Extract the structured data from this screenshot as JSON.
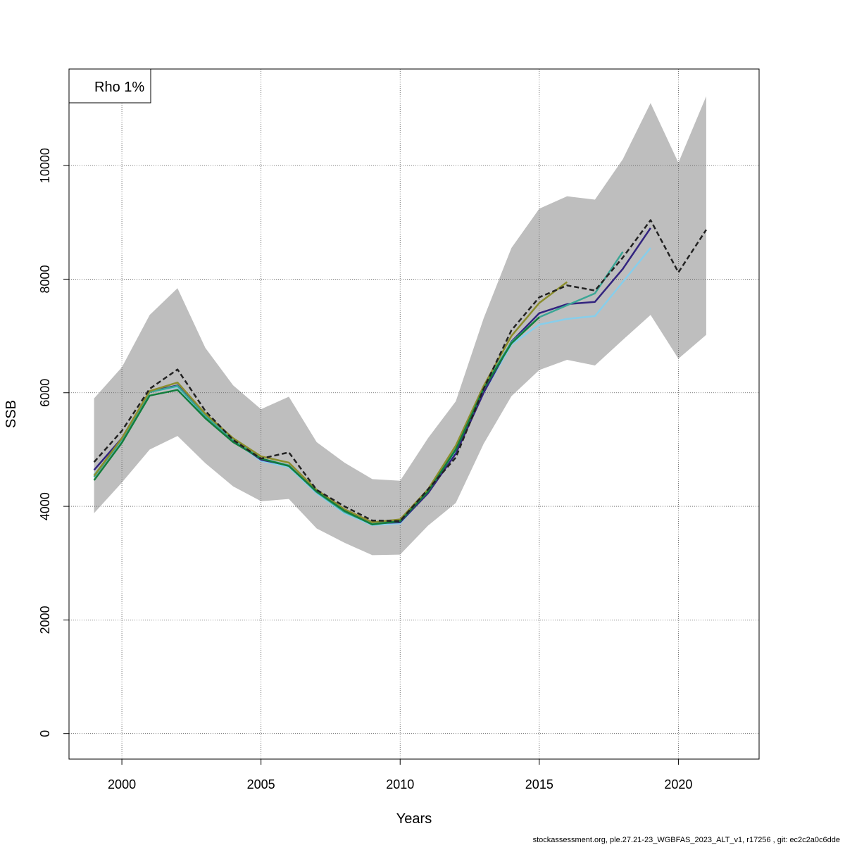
{
  "chart_data": {
    "type": "line",
    "title": "",
    "xlabel": "Years",
    "ylabel": "SSB",
    "xlim": [
      1998.1,
      2022.9
    ],
    "ylim": [
      -450,
      11700
    ],
    "x_ticks": [
      2000,
      2005,
      2010,
      2015,
      2020
    ],
    "y_ticks": [
      0,
      2000,
      4000,
      6000,
      8000,
      10000
    ],
    "grid": true,
    "legend": {
      "placement": "top-left",
      "text": "Rho 1%"
    },
    "band": {
      "color": "#bebebe",
      "x": [
        1999,
        2000,
        2001,
        2002,
        2003,
        2004,
        2005,
        2006,
        2007,
        2008,
        2009,
        2010,
        2011,
        2012,
        2013,
        2014,
        2015,
        2016,
        2017,
        2018,
        2019,
        2020,
        2021
      ],
      "lower": [
        3880,
        4420,
        5000,
        5240,
        4760,
        4350,
        4090,
        4130,
        3610,
        3360,
        3140,
        3150,
        3660,
        4060,
        5100,
        5940,
        6400,
        6580,
        6480,
        6930,
        7370,
        6600,
        7020
      ],
      "upper": [
        5900,
        6450,
        7370,
        7840,
        6790,
        6130,
        5710,
        5930,
        5130,
        4770,
        4480,
        4450,
        5200,
        5850,
        7310,
        8550,
        9240,
        9460,
        9400,
        10110,
        11100,
        10050,
        11220
      ]
    },
    "series": [
      {
        "color": "#87ceeb",
        "dash": false,
        "x": [
          1999,
          2000,
          2001,
          2002,
          2003,
          2004,
          2005,
          2006,
          2007,
          2008,
          2009,
          2010,
          2011,
          2012,
          2013,
          2014,
          2015,
          2016,
          2017,
          2018,
          2019
        ],
        "values": [
          4560,
          5150,
          6020,
          6100,
          5580,
          5160,
          4800,
          4690,
          4230,
          3880,
          3670,
          3700,
          4250,
          4970,
          6000,
          6850,
          7200,
          7300,
          7350,
          7950,
          8550
        ]
      },
      {
        "color": "#33247f",
        "dash": false,
        "x": [
          1999,
          2000,
          2001,
          2002,
          2003,
          2004,
          2005,
          2006,
          2007,
          2008,
          2009,
          2010,
          2011,
          2012,
          2013,
          2014,
          2015,
          2016,
          2017,
          2018,
          2019
        ],
        "values": [
          4640,
          5200,
          6020,
          6130,
          5600,
          5160,
          4820,
          4720,
          4250,
          3920,
          3700,
          3720,
          4230,
          4930,
          6000,
          6900,
          7400,
          7560,
          7600,
          8180,
          8900
        ]
      },
      {
        "color": "#3aa695",
        "dash": false,
        "x": [
          1999,
          2000,
          2001,
          2002,
          2003,
          2004,
          2005,
          2006,
          2007,
          2008,
          2009,
          2010,
          2011,
          2012,
          2013,
          2014,
          2015,
          2016,
          2017,
          2018
        ],
        "values": [
          4520,
          5180,
          6010,
          6120,
          5590,
          5170,
          4840,
          4720,
          4250,
          3900,
          3690,
          3740,
          4270,
          5030,
          6100,
          6890,
          7330,
          7540,
          7750,
          8480
        ]
      },
      {
        "color": "#8c8e2c",
        "dash": false,
        "x": [
          1999,
          2000,
          2001,
          2002,
          2003,
          2004,
          2005,
          2006,
          2007,
          2008,
          2009,
          2010,
          2011,
          2012,
          2013,
          2014,
          2015,
          2016
        ],
        "values": [
          4540,
          5200,
          6030,
          6180,
          5630,
          5200,
          4880,
          4770,
          4290,
          3950,
          3720,
          3770,
          4300,
          5070,
          6120,
          7000,
          7580,
          7950
        ]
      },
      {
        "color": "#127d3c",
        "dash": false,
        "x": [
          1999,
          2000,
          2001,
          2002,
          2003,
          2004,
          2005,
          2006,
          2007,
          2008,
          2009,
          2010,
          2011,
          2012,
          2013,
          2014,
          2015
        ],
        "values": [
          4460,
          5120,
          5950,
          6050,
          5550,
          5130,
          4840,
          4710,
          4260,
          3920,
          3680,
          3740,
          4260,
          5000,
          6070,
          6870,
          7330
        ]
      },
      {
        "color": "#222222",
        "dash": true,
        "x": [
          1999,
          2000,
          2001,
          2002,
          2003,
          2004,
          2005,
          2006,
          2007,
          2008,
          2009,
          2010,
          2011,
          2012,
          2013,
          2014,
          2015,
          2016,
          2017,
          2018,
          2019,
          2020,
          2021
        ],
        "values": [
          4780,
          5330,
          6070,
          6410,
          5680,
          5170,
          4840,
          4950,
          4290,
          4000,
          3750,
          3740,
          4300,
          4860,
          6070,
          7100,
          7680,
          7890,
          7800,
          8380,
          9040,
          8120,
          8870
        ]
      }
    ]
  },
  "footer": "stockassessment.org, ple.27.21-23_WGBFAS_2023_ALT_v1, r17256 , git: ec2c2a0c6dde"
}
